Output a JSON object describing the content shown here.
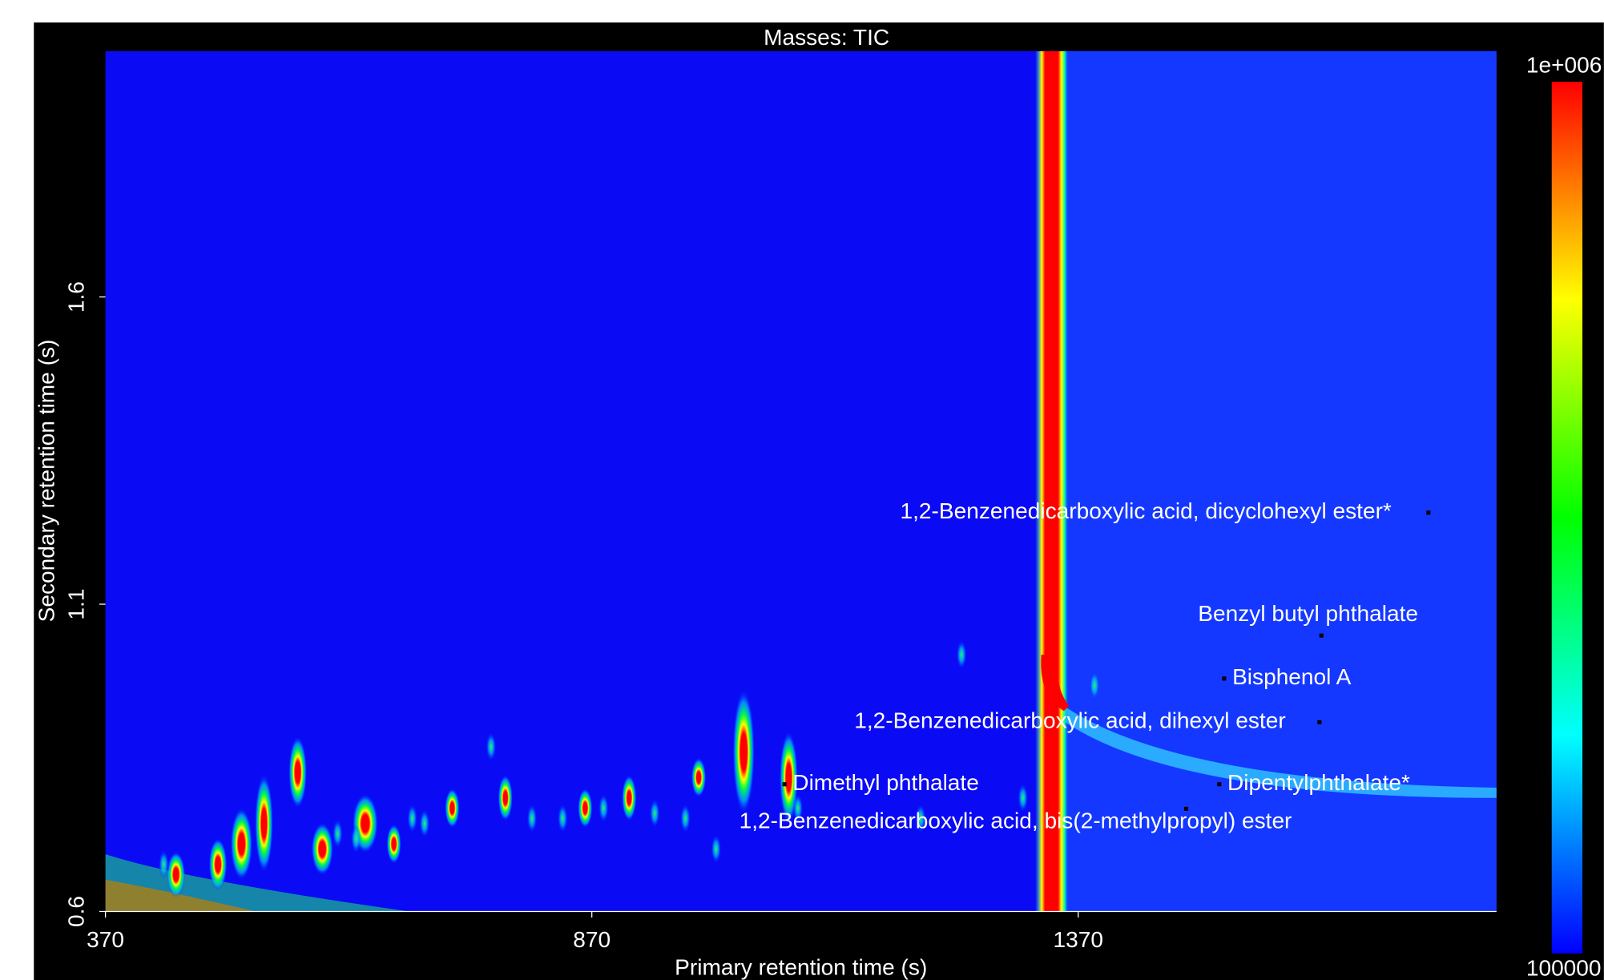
{
  "chart_data": {
    "type": "heatmap",
    "title": "Masses:  TIC",
    "x_label": "Primary retention time (s)",
    "y_label": "Secondary retention time (s)",
    "xlim": [
      370,
      1800
    ],
    "ylim": [
      0.6,
      2.0
    ],
    "xticks": [
      370,
      870,
      1370
    ],
    "yticks": [
      0.6,
      1.1,
      1.6
    ],
    "clim": [
      100000,
      1000000
    ],
    "cticks": [
      {
        "value": 1000000,
        "label": "1e+006"
      },
      100000
    ],
    "colormap": [
      "#0000ff",
      "#00ffff",
      "#00ff00",
      "#ffff00",
      "#ff0000"
    ],
    "annotations": [
      {
        "text": "1,2-Benzenedicarboxylic acid, dicyclohexyl ester*",
        "x": 1730,
        "y": 1.249
      },
      {
        "text": "Benzyl butyl phthalate",
        "x": 1620,
        "y": 1.049
      },
      {
        "text": "Bisphenol A",
        "x": 1520,
        "y": 0.979
      },
      {
        "text": "1,2-Benzenedicarboxylic acid, dihexyl ester",
        "x": 1618,
        "y": 0.908
      },
      {
        "text": "Dipentylphthalate*",
        "x": 1515,
        "y": 0.807
      },
      {
        "text": "Dimethyl phthalate",
        "x": 1068,
        "y": 0.807
      },
      {
        "text": "1,2-Benzenedicarboxylic acid, bis(2-methylpropyl) ester",
        "x": 1481,
        "y": 0.767
      }
    ]
  }
}
